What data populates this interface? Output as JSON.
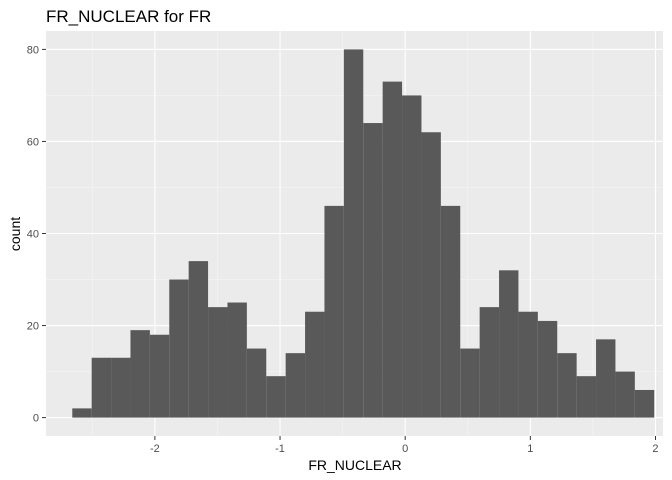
{
  "chart_data": {
    "type": "bar",
    "title": "FR_NUCLEAR  for FR",
    "xlabel": "FR_NUCLEAR",
    "ylabel": "count",
    "xlim": [
      -2.87,
      2.06
    ],
    "ylim": [
      -4,
      84
    ],
    "x_ticks": [
      -2,
      -1,
      0,
      1,
      2
    ],
    "x_tick_labels": [
      "-2",
      "-1",
      "0",
      "1",
      "2"
    ],
    "y_ticks": [
      0,
      20,
      40,
      60,
      80
    ],
    "y_tick_labels": [
      "0",
      "20",
      "40",
      "60",
      "80"
    ],
    "bin_start": -2.66,
    "bin_width": 0.155,
    "values": [
      2,
      13,
      13,
      19,
      18,
      30,
      34,
      24,
      25,
      15,
      9,
      14,
      23,
      46,
      80,
      64,
      73,
      70,
      62,
      46,
      15,
      24,
      32,
      23,
      21,
      14,
      9,
      17,
      10,
      6
    ],
    "grid": true,
    "legend": "none",
    "colors": {
      "bar": "#595959",
      "panel": "#ebebeb",
      "grid_major": "#ffffff",
      "grid_minor": "#f5f5f5"
    }
  }
}
